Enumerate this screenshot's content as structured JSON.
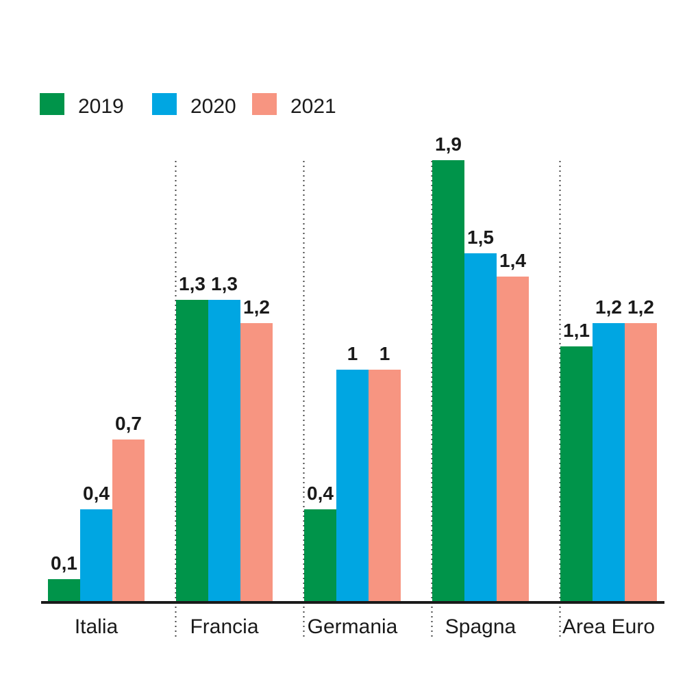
{
  "chart_data": {
    "type": "bar",
    "title": "",
    "xlabel": "",
    "ylabel": "",
    "ylim": [
      0,
      2
    ],
    "grid": false,
    "legend_position": "top-left",
    "categories": [
      "Italia",
      "Francia",
      "Germania",
      "Spagna",
      "Area Euro"
    ],
    "series": [
      {
        "name": "2019",
        "color": "#00944a",
        "values": [
          0.1,
          1.3,
          0.4,
          1.9,
          1.1
        ],
        "labels": [
          "0,1",
          "1,3",
          "0,4",
          "1,9",
          "1,1"
        ]
      },
      {
        "name": "2020",
        "color": "#00a6e2",
        "values": [
          0.4,
          1.3,
          1,
          1.5,
          1.2
        ],
        "labels": [
          "0,4",
          "1,3",
          "1",
          "1,5",
          "1,2"
        ]
      },
      {
        "name": "2021",
        "color": "#f79581",
        "values": [
          0.7,
          1.2,
          1,
          1.4,
          1.2
        ],
        "labels": [
          "0,7",
          "1,2",
          "1",
          "1,4",
          "1,2"
        ]
      }
    ],
    "colors": {
      "baseline": "#1a1a1a",
      "separator": "#444444",
      "text": "#1a1a1a"
    }
  }
}
